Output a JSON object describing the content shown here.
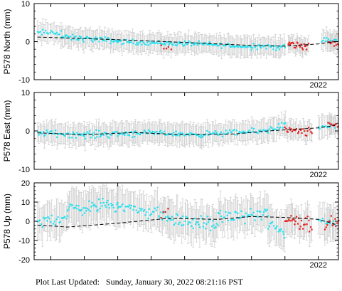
{
  "footer": {
    "label": "Plot Last Updated:",
    "timestamp": "Sunday, January 30, 2022 08:21:16 PST"
  },
  "colors": {
    "cyan": "#1ee1f0",
    "red": "#e61e1e",
    "error_bar": "#cfcfcf",
    "trend": "#000000",
    "frame": "#000000"
  },
  "chart_data": [
    {
      "type": "scatter",
      "component": "north",
      "ylabel": "P578 North (mm)",
      "ylim": [
        -10,
        10
      ],
      "yticks": [
        10,
        0,
        -10
      ],
      "xlim": [
        2013.5,
        2022.6
      ],
      "xticks": [
        {
          "value": 2022.0,
          "label": "2022"
        }
      ],
      "trend": {
        "x": [
          2013.6,
          2016.0,
          2018.0,
          2020.0,
          2021.0,
          2022.0,
          2022.5
        ],
        "y": [
          1.2,
          0.5,
          -0.2,
          -1.0,
          -1.2,
          -0.6,
          0.0
        ]
      },
      "cyan_series": {
        "segments": [
          {
            "x0": 2013.6,
            "x1": 2014.3,
            "n": 18,
            "y0": 2.2,
            "y1": 2.5,
            "spread": 1.4
          },
          {
            "x0": 2014.3,
            "x1": 2016.0,
            "n": 55,
            "y0": 1.2,
            "y1": 0.2,
            "spread": 1.2
          },
          {
            "x0": 2016.0,
            "x1": 2018.0,
            "n": 60,
            "y0": 0.0,
            "y1": -0.6,
            "spread": 1.0
          },
          {
            "x0": 2018.0,
            "x1": 2020.0,
            "n": 62,
            "y0": -0.4,
            "y1": -1.4,
            "spread": 1.0
          },
          {
            "x0": 2020.0,
            "x1": 2021.0,
            "n": 32,
            "y0": -1.0,
            "y1": -1.6,
            "spread": 1.3
          },
          {
            "x0": 2022.1,
            "x1": 2022.55,
            "n": 14,
            "y0": 0.4,
            "y1": 0.2,
            "spread": 1.2
          }
        ],
        "err": 2.4
      },
      "red_series": {
        "segments": [
          {
            "x0": 2017.3,
            "x1": 2017.6,
            "n": 5,
            "y0": -1.2,
            "y1": -2.0,
            "spread": 0.8
          },
          {
            "x0": 2021.1,
            "x1": 2021.7,
            "n": 24,
            "y0": -0.6,
            "y1": -1.3,
            "spread": 1.6
          },
          {
            "x0": 2022.3,
            "x1": 2022.6,
            "n": 10,
            "y0": -0.2,
            "y1": -0.8,
            "spread": 1.2
          }
        ],
        "err": 2.0
      }
    },
    {
      "type": "scatter",
      "component": "east",
      "ylabel": "P578 East (mm)",
      "ylim": [
        -10,
        10
      ],
      "yticks": [
        10,
        0,
        -10
      ],
      "xlim": [
        2013.5,
        2022.6
      ],
      "xticks": [
        {
          "value": 2022.0,
          "label": "2022"
        }
      ],
      "trend": {
        "x": [
          2013.6,
          2015.0,
          2016.5,
          2018.0,
          2019.5,
          2020.5,
          2022.0,
          2022.5
        ],
        "y": [
          -0.5,
          -1.0,
          -0.4,
          -1.0,
          -0.8,
          0.0,
          0.8,
          1.4
        ]
      },
      "cyan_series": {
        "segments": [
          {
            "x0": 2013.6,
            "x1": 2015.0,
            "n": 42,
            "y0": -0.5,
            "y1": -1.0,
            "spread": 1.3
          },
          {
            "x0": 2015.0,
            "x1": 2016.5,
            "n": 48,
            "y0": -1.0,
            "y1": -0.6,
            "spread": 1.5
          },
          {
            "x0": 2016.5,
            "x1": 2018.5,
            "n": 62,
            "y0": -0.4,
            "y1": -1.0,
            "spread": 1.0
          },
          {
            "x0": 2018.5,
            "x1": 2020.5,
            "n": 58,
            "y0": -0.9,
            "y1": 0.0,
            "spread": 1.2
          },
          {
            "x0": 2020.5,
            "x1": 2021.0,
            "n": 16,
            "y0": 0.5,
            "y1": 1.5,
            "spread": 1.4
          },
          {
            "x0": 2022.0,
            "x1": 2022.5,
            "n": 12,
            "y0": 0.8,
            "y1": 1.4,
            "spread": 1.0
          }
        ],
        "err": 2.6
      },
      "red_series": {
        "segments": [
          {
            "x0": 2021.0,
            "x1": 2021.8,
            "n": 26,
            "y0": 0.0,
            "y1": -0.5,
            "spread": 1.8
          },
          {
            "x0": 2022.3,
            "x1": 2022.6,
            "n": 10,
            "y0": 1.8,
            "y1": 1.4,
            "spread": 0.8
          }
        ],
        "err": 2.2
      }
    },
    {
      "type": "scatter",
      "component": "up",
      "ylabel": "P578 Up (mm)",
      "ylim": [
        -20,
        20
      ],
      "yticks": [
        20,
        10,
        0,
        -10,
        -20
      ],
      "xlim": [
        2013.5,
        2022.6
      ],
      "xticks": [
        {
          "value": 2022.0,
          "label": "2022"
        }
      ],
      "trend": {
        "x": [
          2013.6,
          2014.5,
          2016.0,
          2017.5,
          2019.0,
          2020.0,
          2021.0,
          2022.0,
          2022.5
        ],
        "y": [
          -2.0,
          -3.0,
          -1.0,
          1.5,
          1.0,
          2.5,
          2.0,
          1.0,
          -1.5
        ]
      },
      "cyan_series": {
        "segments": [
          {
            "x0": 2013.6,
            "x1": 2014.5,
            "n": 26,
            "y0": -1.0,
            "y1": 3.0,
            "spread": 5.0
          },
          {
            "x0": 2014.5,
            "x1": 2016.0,
            "n": 52,
            "y0": 6.0,
            "y1": 9.0,
            "spread": 5.5
          },
          {
            "x0": 2016.0,
            "x1": 2017.5,
            "n": 44,
            "y0": 8.0,
            "y1": 3.0,
            "spread": 5.0
          },
          {
            "x0": 2017.5,
            "x1": 2019.0,
            "n": 48,
            "y0": 1.0,
            "y1": -2.0,
            "spread": 5.5
          },
          {
            "x0": 2019.0,
            "x1": 2020.5,
            "n": 46,
            "y0": 2.0,
            "y1": 4.0,
            "spread": 5.0
          },
          {
            "x0": 2020.5,
            "x1": 2021.0,
            "n": 16,
            "y0": -2.0,
            "y1": -6.0,
            "spread": 6.0
          },
          {
            "x0": 2022.0,
            "x1": 2022.5,
            "n": 12,
            "y0": 1.0,
            "y1": -2.0,
            "spread": 5.0
          }
        ],
        "err": 8.5
      },
      "red_series": {
        "segments": [
          {
            "x0": 2017.3,
            "x1": 2017.5,
            "n": 4,
            "y0": 4.0,
            "y1": 6.0,
            "spread": 3.0
          },
          {
            "x0": 2021.0,
            "x1": 2021.8,
            "n": 28,
            "y0": 1.0,
            "y1": -1.0,
            "spread": 6.5
          },
          {
            "x0": 2022.2,
            "x1": 2022.6,
            "n": 12,
            "y0": -2.0,
            "y1": 0.0,
            "spread": 5.0
          }
        ],
        "err": 7.0
      }
    }
  ]
}
